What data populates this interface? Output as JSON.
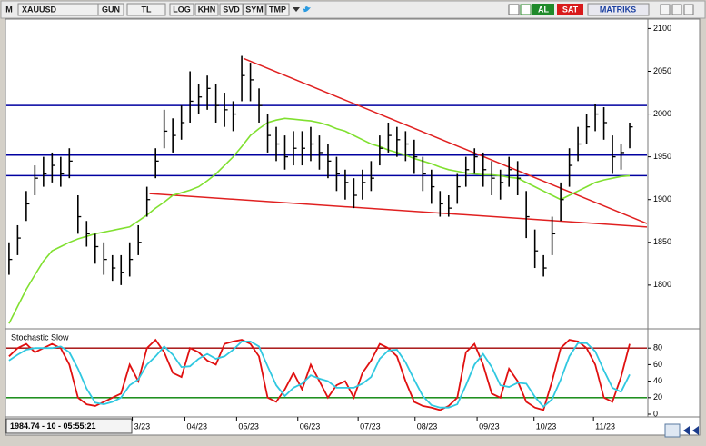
{
  "toolbar": {
    "buttons": [
      "M",
      "XAUUSD",
      "GUN",
      "TL",
      "LOG",
      "KHN",
      "SVD",
      "SYM",
      "TMP"
    ],
    "buy": "AL",
    "sell": "SAT",
    "brand": "MATRIKS"
  },
  "status": "1984.74 - 10 - 05:55:21",
  "chart_data": [
    {
      "type": "ohlc",
      "xlim": [
        -0.2,
        74
      ],
      "xticks": [
        {
          "value": 14.3,
          "label": "3/23"
        },
        {
          "value": 20.4,
          "label": "04/23"
        },
        {
          "value": 26.4,
          "label": "05/23"
        },
        {
          "value": 33.5,
          "label": "06/23"
        },
        {
          "value": 40.5,
          "label": "07/23"
        },
        {
          "value": 47.1,
          "label": "08/23"
        },
        {
          "value": 54.3,
          "label": "09/23"
        },
        {
          "value": 60.9,
          "label": "10/23"
        },
        {
          "value": 67.8,
          "label": "11/23"
        }
      ],
      "ylim": [
        1751,
        2110
      ],
      "yticks": [
        1800,
        1850,
        1900,
        1950,
        2000,
        2050,
        2100
      ],
      "ohlc": {
        "color": "#000000",
        "high": [
          1850,
          1870,
          1910,
          1940,
          1950,
          1955,
          1950,
          1960,
          1905,
          1875,
          1860,
          1850,
          1835,
          1835,
          1850,
          1870,
          1915,
          1960,
          2005,
          1995,
          2010,
          2050,
          2035,
          2045,
          2035,
          2025,
          2015,
          2068,
          2060,
          2030,
          2000,
          1985,
          1975,
          1980,
          1980,
          1985,
          1975,
          1965,
          1950,
          1935,
          1925,
          1935,
          1945,
          1975,
          1990,
          1985,
          1980,
          1970,
          1950,
          1935,
          1910,
          1905,
          1930,
          1950,
          1960,
          1955,
          1945,
          1935,
          1950,
          1945,
          1910,
          1865,
          1835,
          1880,
          1920,
          1960,
          1985,
          2000,
          2012,
          2008,
          1975,
          1965,
          1990
        ],
        "low": [
          1812,
          1835,
          1875,
          1905,
          1915,
          1920,
          1915,
          1925,
          1860,
          1845,
          1825,
          1812,
          1805,
          1800,
          1810,
          1835,
          1880,
          1925,
          1960,
          1955,
          1970,
          1990,
          2000,
          2005,
          1990,
          1985,
          1980,
          2015,
          2015,
          1990,
          1955,
          1945,
          1935,
          1940,
          1940,
          1945,
          1935,
          1925,
          1910,
          1900,
          1890,
          1900,
          1910,
          1940,
          1955,
          1950,
          1945,
          1930,
          1910,
          1895,
          1880,
          1880,
          1895,
          1915,
          1930,
          1915,
          1905,
          1900,
          1915,
          1905,
          1855,
          1820,
          1810,
          1835,
          1875,
          1915,
          1945,
          1965,
          1980,
          1970,
          1930,
          1935,
          1960
        ],
        "close": [
          1830,
          1855,
          1895,
          1925,
          1930,
          1940,
          1930,
          1945,
          1880,
          1860,
          1845,
          1830,
          1820,
          1815,
          1830,
          1850,
          1900,
          1945,
          1980,
          1975,
          1990,
          2015,
          2020,
          2030,
          2010,
          2005,
          2000,
          2045,
          2040,
          2010,
          1975,
          1965,
          1950,
          1960,
          1960,
          1965,
          1955,
          1945,
          1930,
          1920,
          1905,
          1920,
          1925,
          1960,
          1975,
          1970,
          1965,
          1950,
          1930,
          1915,
          1895,
          1890,
          1915,
          1935,
          1950,
          1935,
          1925,
          1920,
          1935,
          1925,
          1880,
          1840,
          1820,
          1860,
          1900,
          1940,
          1965,
          1985,
          2000,
          1990,
          1950,
          1955,
          1985
        ]
      },
      "series": [
        {
          "color": "#80e030",
          "values": [
            1755,
            1775,
            1795,
            1812,
            1828,
            1840,
            1845,
            1850,
            1854,
            1857,
            1860,
            1862,
            1864,
            1866,
            1868,
            1875,
            1882,
            1890,
            1897,
            1905,
            1908,
            1911,
            1915,
            1922,
            1930,
            1940,
            1950,
            1962,
            1975,
            1983,
            1990,
            1993,
            1995,
            1994,
            1993,
            1992,
            1990,
            1987,
            1983,
            1980,
            1975,
            1970,
            1965,
            1962,
            1958,
            1955,
            1952,
            1948,
            1945,
            1942,
            1938,
            1935,
            1933,
            1931,
            1930,
            1929,
            1929,
            1928,
            1926,
            1925,
            1920,
            1915,
            1910,
            1905,
            1900,
            1905,
            1910,
            1915,
            1920,
            1923,
            1925,
            1927,
            1928
          ]
        }
      ],
      "hlines": {
        "color": "#0000a0",
        "values": [
          2010,
          1952,
          1928
        ]
      },
      "trendlines": {
        "color": "#e02020",
        "lines": [
          {
            "x": [
              27.2,
              74
            ],
            "y": [
              2065,
              1872
            ]
          },
          {
            "x": [
              16.3,
              74
            ],
            "y": [
              1907,
              1868
            ]
          }
        ]
      }
    },
    {
      "type": "line",
      "title": "Stochastic Slow",
      "ylim": [
        0,
        100
      ],
      "yticks": [
        0,
        20,
        40,
        60,
        80
      ],
      "levels": [
        {
          "value": 80,
          "color": "#a00000"
        },
        {
          "value": 20,
          "color": "#008000"
        }
      ],
      "series": [
        {
          "color": "#e01010",
          "values": [
            70,
            80,
            85,
            75,
            80,
            85,
            80,
            60,
            20,
            12,
            10,
            15,
            20,
            25,
            60,
            40,
            80,
            90,
            75,
            50,
            45,
            80,
            75,
            65,
            60,
            85,
            88,
            90,
            85,
            70,
            20,
            15,
            30,
            50,
            30,
            60,
            40,
            20,
            35,
            40,
            20,
            50,
            65,
            85,
            80,
            70,
            40,
            15,
            10,
            8,
            5,
            10,
            20,
            75,
            85,
            60,
            25,
            20,
            55,
            40,
            15,
            8,
            5,
            40,
            80,
            90,
            88,
            80,
            60,
            20,
            15,
            45,
            85
          ]
        },
        {
          "color": "#30c8e0",
          "values": [
            65,
            72,
            78,
            80,
            80,
            80,
            82,
            75,
            55,
            31,
            14,
            12,
            15,
            20,
            35,
            42,
            60,
            70,
            82,
            72,
            57,
            58,
            67,
            73,
            67,
            70,
            78,
            88,
            88,
            82,
            58,
            35,
            22,
            32,
            37,
            47,
            43,
            40,
            32,
            32,
            32,
            37,
            45,
            67,
            77,
            78,
            63,
            42,
            22,
            11,
            8,
            8,
            12,
            35,
            60,
            73,
            57,
            35,
            33,
            38,
            37,
            21,
            9,
            18,
            42,
            70,
            86,
            86,
            76,
            53,
            32,
            27,
            48
          ]
        }
      ]
    }
  ]
}
